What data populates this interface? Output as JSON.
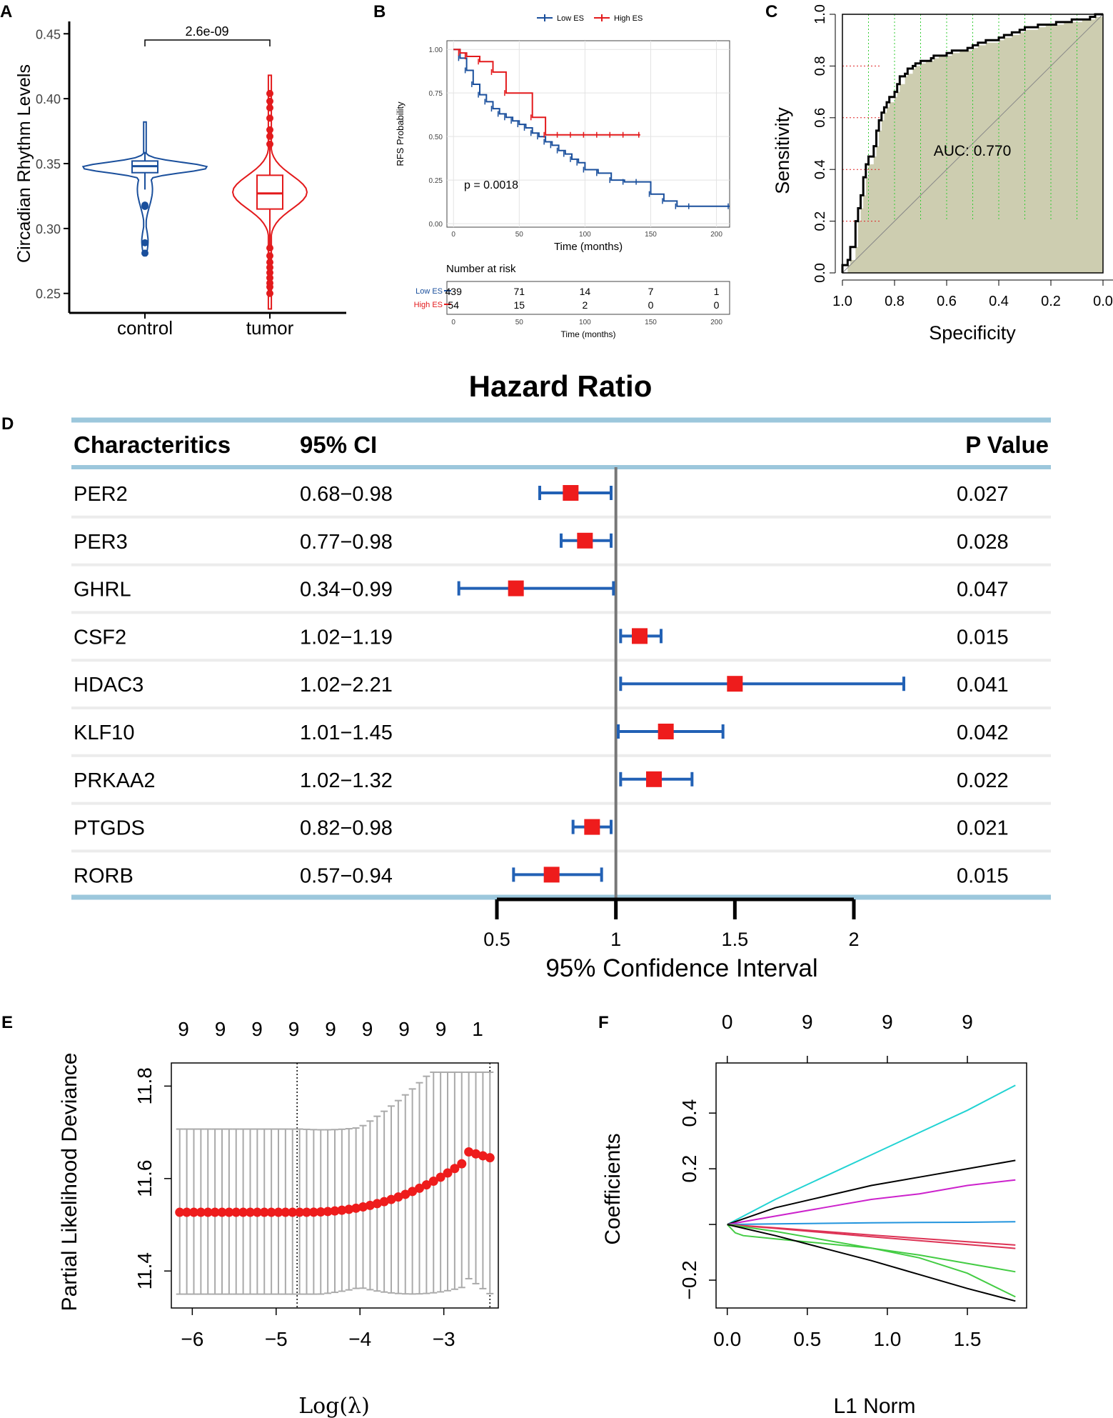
{
  "panels": {
    "A": {
      "label": "A",
      "chart_data": {
        "type": "violin-box",
        "ylabel": "Circadian Rhythm Levels",
        "categories": [
          "control",
          "tumor"
        ],
        "ylim": [
          0.235,
          0.465
        ],
        "yticks": [
          "0.25",
          "0.30",
          "0.35",
          "0.40",
          "0.45"
        ],
        "significance": "2.6e-09",
        "colors": {
          "control": "#1a4f9c",
          "tumor": "#e31a1c"
        },
        "series": [
          {
            "name": "control",
            "median": 0.348,
            "q1": 0.343,
            "q3": 0.352,
            "whisker_low": 0.33,
            "whisker_high": 0.359,
            "min": 0.279,
            "max": 0.382,
            "outliers": [
              0.318,
              0.317,
              0.289,
              0.281
            ]
          },
          {
            "name": "tumor",
            "median": 0.327,
            "q1": 0.315,
            "q3": 0.341,
            "whisker_low": 0.287,
            "whisker_high": 0.364,
            "min": 0.238,
            "max": 0.418,
            "outliers": [
              0.404,
              0.398,
              0.393,
              0.385,
              0.376,
              0.371,
              0.365,
              0.285,
              0.279,
              0.274,
              0.27,
              0.266,
              0.262,
              0.258,
              0.255,
              0.25
            ]
          }
        ]
      }
    },
    "B": {
      "label": "B",
      "chart_data": {
        "type": "kaplan-meier",
        "ylabel": "RFS Probability",
        "xlabel": "Time (months)",
        "xlim": [
          -5,
          210
        ],
        "ylim": [
          -0.02,
          1.05
        ],
        "xticks": [
          "0",
          "50",
          "100",
          "150",
          "200"
        ],
        "yticks": [
          "0.00",
          "0.25",
          "0.50",
          "0.75",
          "1.00"
        ],
        "legend": [
          "Low ES",
          "High ES"
        ],
        "pvalue": "p = 0.0018",
        "series": [
          {
            "name": "Low ES",
            "color": "#1a4f9c",
            "x": [
              0,
              5,
              10,
              15,
              20,
              25,
              30,
              35,
              40,
              45,
              50,
              55,
              60,
              65,
              70,
              75,
              80,
              85,
              90,
              95,
              100,
              110,
              120,
              130,
              140,
              150,
              160,
              170,
              180,
              210
            ],
            "y": [
              1.0,
              0.95,
              0.88,
              0.8,
              0.74,
              0.7,
              0.66,
              0.63,
              0.61,
              0.59,
              0.57,
              0.55,
              0.52,
              0.5,
              0.47,
              0.45,
              0.42,
              0.4,
              0.37,
              0.35,
              0.31,
              0.29,
              0.25,
              0.24,
              0.24,
              0.17,
              0.13,
              0.1,
              0.1,
              0.1
            ]
          },
          {
            "name": "High ES",
            "color": "#e31a1c",
            "x": [
              0,
              5,
              10,
              20,
              30,
              40,
              60,
              70,
              80,
              90,
              100,
              110,
              120,
              130,
              142
            ],
            "y": [
              1.0,
              0.98,
              0.96,
              0.93,
              0.87,
              0.75,
              0.61,
              0.51,
              0.51,
              0.51,
              0.51,
              0.51,
              0.51,
              0.51,
              0.51
            ]
          }
        ],
        "risk_table": {
          "title": "Number at risk",
          "rows": [
            {
              "name": "Low ES",
              "values": [
                "439",
                "71",
                "14",
                "7",
                "1"
              ]
            },
            {
              "name": "High ES",
              "values": [
                "54",
                "15",
                "2",
                "0",
                "0"
              ]
            }
          ],
          "xlabel": "Time (months)"
        }
      }
    },
    "C": {
      "label": "C",
      "chart_data": {
        "type": "roc",
        "xlabel": "Specificity",
        "ylabel": "Sensitivity",
        "auc_label": "AUC: 0.770",
        "xticks": [
          "1.0",
          "0.8",
          "0.6",
          "0.4",
          "0.2",
          "0.0"
        ],
        "yticks": [
          "0.0",
          "0.2",
          "0.4",
          "0.6",
          "0.8",
          "1.0"
        ],
        "fill_color": "#cdcdb0",
        "specificity": [
          1.0,
          0.98,
          0.97,
          0.95,
          0.94,
          0.93,
          0.92,
          0.91,
          0.9,
          0.88,
          0.87,
          0.86,
          0.85,
          0.84,
          0.83,
          0.82,
          0.8,
          0.79,
          0.78,
          0.76,
          0.75,
          0.73,
          0.72,
          0.7,
          0.68,
          0.66,
          0.65,
          0.63,
          0.6,
          0.58,
          0.55,
          0.52,
          0.5,
          0.48,
          0.45,
          0.4,
          0.38,
          0.35,
          0.32,
          0.3,
          0.25,
          0.22,
          0.18,
          0.15,
          0.12,
          0.08,
          0.05,
          0.03,
          0.0
        ],
        "sensitivity": [
          0.0,
          0.03,
          0.05,
          0.1,
          0.2,
          0.25,
          0.3,
          0.37,
          0.42,
          0.45,
          0.49,
          0.55,
          0.59,
          0.62,
          0.64,
          0.66,
          0.68,
          0.7,
          0.73,
          0.76,
          0.77,
          0.79,
          0.8,
          0.81,
          0.82,
          0.82,
          0.83,
          0.84,
          0.84,
          0.85,
          0.86,
          0.86,
          0.87,
          0.88,
          0.89,
          0.9,
          0.91,
          0.92,
          0.93,
          0.94,
          0.95,
          0.96,
          0.96,
          0.97,
          0.97,
          0.98,
          0.98,
          0.99,
          1.0
        ],
        "dotted_sens": [
          0.2,
          0.4,
          0.6,
          0.8,
          1.0
        ],
        "dotted_spec": [
          1.0,
          0.9,
          0.8,
          0.7,
          0.6,
          0.5,
          0.4,
          0.3,
          0.2,
          0.1,
          0.0
        ]
      }
    },
    "D": {
      "label": "D",
      "chart_data": {
        "type": "forest",
        "title": "Hazard Ratio",
        "columns": {
          "name": "Characteritics",
          "ci": "95% CI",
          "p": "P Value"
        },
        "xlabel": "95% Confidence Interval",
        "xticks": [
          "0.5",
          "1",
          "1.5",
          "2"
        ],
        "xlim": [
          0.5,
          2.0
        ],
        "reference": 1.0,
        "rows": [
          {
            "name": "PER2",
            "ci": "0.68−0.98",
            "hr": 0.81,
            "low": 0.68,
            "high": 0.98,
            "p": "0.027"
          },
          {
            "name": "PER3",
            "ci": "0.77−0.98",
            "hr": 0.87,
            "low": 0.77,
            "high": 0.98,
            "p": "0.028"
          },
          {
            "name": "GHRL",
            "ci": "0.34−0.99",
            "hr": 0.58,
            "low": 0.34,
            "high": 0.99,
            "p": "0.047"
          },
          {
            "name": "CSF2",
            "ci": "1.02−1.19",
            "hr": 1.1,
            "low": 1.02,
            "high": 1.19,
            "p": "0.015"
          },
          {
            "name": "HDAC3",
            "ci": "1.02−2.21",
            "hr": 1.5,
            "low": 1.02,
            "high": 2.21,
            "p": "0.041"
          },
          {
            "name": "KLF10",
            "ci": "1.01−1.45",
            "hr": 1.21,
            "low": 1.01,
            "high": 1.45,
            "p": "0.042"
          },
          {
            "name": "PRKAA2",
            "ci": "1.02−1.32",
            "hr": 1.16,
            "low": 1.02,
            "high": 1.32,
            "p": "0.022"
          },
          {
            "name": "PTGDS",
            "ci": "0.82−0.98",
            "hr": 0.9,
            "low": 0.82,
            "high": 0.98,
            "p": "0.021"
          },
          {
            "name": "RORB",
            "ci": "0.57−0.94",
            "hr": 0.73,
            "low": 0.57,
            "high": 0.94,
            "p": "0.015"
          }
        ]
      }
    },
    "E": {
      "label": "E",
      "chart_data": {
        "type": "cv-deviance",
        "xlabel": "Log(λ)",
        "ylabel": "Partial Likelihood Deviance",
        "xlim": [
          -6.25,
          -2.35
        ],
        "ylim": [
          11.32,
          11.85
        ],
        "xticks": [
          "−6",
          "−5",
          "−4",
          "−3"
        ],
        "yticks": [
          "11.4",
          "11.6",
          "11.8"
        ],
        "top_counts": [
          "9",
          "9",
          "9",
          "9",
          "9",
          "9",
          "9",
          "9",
          "1"
        ],
        "lambda_min": -4.75,
        "lambda_1se": -2.45,
        "n_points": 45,
        "log_lambda_start": -6.15,
        "log_lambda_end": -2.45
      }
    },
    "F": {
      "label": "F",
      "chart_data": {
        "type": "coef-path",
        "xlabel": "L1 Norm",
        "ylabel": "Coefficients",
        "xlim": [
          -0.07,
          1.87
        ],
        "ylim": [
          -0.3,
          0.58
        ],
        "xticks": [
          "0.0",
          "0.5",
          "1.0",
          "1.5"
        ],
        "yticks": [
          "−0.2",
          "0.2",
          "0.4"
        ],
        "top_counts": [
          "0",
          "9",
          "9",
          "9"
        ],
        "series": [
          {
            "color": "#22d3d3",
            "x": [
              0,
              0.3,
              0.6,
              0.9,
              1.2,
              1.5,
              1.8
            ],
            "y": [
              0,
              0.09,
              0.17,
              0.25,
              0.33,
              0.41,
              0.5
            ]
          },
          {
            "color": "#000000",
            "x": [
              0,
              0.3,
              0.6,
              0.9,
              1.2,
              1.5,
              1.8
            ],
            "y": [
              0,
              0.06,
              0.1,
              0.14,
              0.17,
              0.2,
              0.23
            ]
          },
          {
            "color": "#cc22cc",
            "x": [
              0,
              0.3,
              0.6,
              0.9,
              1.2,
              1.5,
              1.8
            ],
            "y": [
              0,
              0.03,
              0.06,
              0.09,
              0.11,
              0.14,
              0.16
            ]
          },
          {
            "color": "#2294dd",
            "x": [
              0,
              0.3,
              0.6,
              0.9,
              1.2,
              1.5,
              1.8
            ],
            "y": [
              0,
              0.002,
              0.004,
              0.006,
              0.007,
              0.008,
              0.01
            ]
          },
          {
            "color": "#dd3355",
            "x": [
              0,
              0.3,
              0.6,
              0.9,
              1.2,
              1.5,
              1.8
            ],
            "y": [
              0,
              -0.012,
              -0.025,
              -0.038,
              -0.05,
              -0.062,
              -0.074
            ]
          },
          {
            "color": "#dd3355",
            "x": [
              0,
              0.3,
              0.6,
              0.9,
              1.2,
              1.5,
              1.8
            ],
            "y": [
              0,
              -0.014,
              -0.029,
              -0.044,
              -0.058,
              -0.072,
              -0.086
            ]
          },
          {
            "color": "#44cc44",
            "x": [
              0,
              0.05,
              0.1,
              0.3,
              0.6,
              0.9,
              1.2,
              1.5,
              1.8
            ],
            "y": [
              0,
              -0.03,
              -0.04,
              -0.052,
              -0.068,
              -0.085,
              -0.11,
              -0.14,
              -0.17
            ]
          },
          {
            "color": "#44cc44",
            "x": [
              0,
              0.3,
              0.6,
              0.9,
              1.2,
              1.5,
              1.8
            ],
            "y": [
              0,
              -0.025,
              -0.055,
              -0.085,
              -0.12,
              -0.175,
              -0.26
            ]
          },
          {
            "color": "#000000",
            "x": [
              0,
              0.3,
              0.6,
              0.9,
              1.2,
              1.5,
              1.8
            ],
            "y": [
              0,
              -0.04,
              -0.085,
              -0.13,
              -0.18,
              -0.23,
              -0.275
            ]
          }
        ]
      }
    }
  }
}
